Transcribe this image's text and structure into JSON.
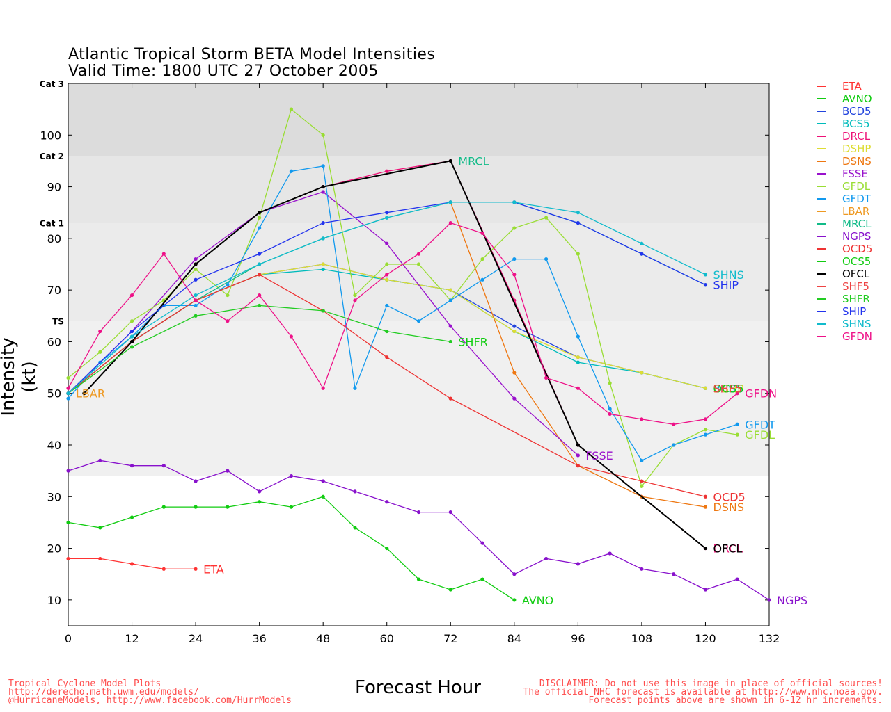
{
  "page": {
    "title_line1": "Atlantic Tropical Storm BETA Model Intensities",
    "title_line2": "Valid Time: 1800 UTC 27 October 2005",
    "footer_left": [
      "Tropical Cyclone Model Plots",
      "http://derecho.math.uwm.edu/models/",
      "@HurricaneModels, http://www.facebook.com/HurrModels"
    ],
    "footer_right": [
      "DISCLAIMER: Do not use this image in place of official sources!",
      "The official NHC forecast is available at http://www.nhc.noaa.gov.",
      "Forecast points above are shown in 6-12 hr increments."
    ]
  },
  "chart_data": {
    "type": "line",
    "title": "Atlantic Tropical Storm BETA Model Intensities",
    "subtitle": "Valid Time: 1800 UTC 27 October 2005",
    "xlabel": "Forecast Hour",
    "ylabel": "Intensity (kt)",
    "xlim": [
      0,
      132
    ],
    "ylim": [
      5,
      110
    ],
    "xticks": [
      0,
      12,
      24,
      36,
      48,
      60,
      72,
      84,
      96,
      108,
      120,
      132
    ],
    "yticks": [
      10,
      20,
      30,
      40,
      50,
      60,
      70,
      80,
      90,
      100
    ],
    "category_bands": [
      {
        "label": "TS",
        "from": 34,
        "to": 64,
        "color": "#f0f0f0"
      },
      {
        "label": "Cat 1",
        "from": 64,
        "to": 83,
        "color": "#ebebeb"
      },
      {
        "label": "Cat 2",
        "from": 83,
        "to": 96,
        "color": "#e6e6e6"
      },
      {
        "label": "Cat 3",
        "from": 96,
        "to": 110,
        "color": "#dcdcdc"
      }
    ],
    "series": [
      {
        "name": "ETA",
        "color": "#ff3333",
        "end_label": "ETA",
        "points": [
          [
            0,
            18
          ],
          [
            6,
            18
          ],
          [
            12,
            17
          ],
          [
            18,
            16
          ],
          [
            24,
            16
          ]
        ]
      },
      {
        "name": "AVNO",
        "color": "#11cc11",
        "end_label": "AVNO",
        "points": [
          [
            0,
            25
          ],
          [
            6,
            24
          ],
          [
            12,
            26
          ],
          [
            18,
            28
          ],
          [
            24,
            28
          ],
          [
            30,
            28
          ],
          [
            36,
            29
          ],
          [
            42,
            28
          ],
          [
            48,
            30
          ],
          [
            54,
            24
          ],
          [
            60,
            20
          ],
          [
            66,
            14
          ],
          [
            72,
            12
          ],
          [
            78,
            14
          ],
          [
            84,
            10
          ]
        ]
      },
      {
        "name": "BCD5",
        "color": "#2244dd",
        "end_label": "",
        "points": [
          [
            0,
            50
          ],
          [
            12,
            60
          ],
          [
            24,
            68
          ],
          [
            36,
            73
          ],
          [
            48,
            75
          ],
          [
            60,
            72
          ],
          [
            72,
            70
          ],
          [
            84,
            63
          ],
          [
            96,
            57
          ],
          [
            108,
            54
          ],
          [
            120,
            51
          ]
        ]
      },
      {
        "name": "BCS5",
        "color": "#00bbbb",
        "end_label": "",
        "points": [
          [
            0,
            50
          ],
          [
            12,
            60
          ],
          [
            24,
            68
          ],
          [
            36,
            73
          ],
          [
            48,
            74
          ],
          [
            60,
            72
          ],
          [
            72,
            70
          ],
          [
            84,
            62
          ],
          [
            96,
            56
          ],
          [
            108,
            54
          ],
          [
            120,
            51
          ]
        ]
      },
      {
        "name": "DRCL",
        "color": "#ee1177",
        "end_label": "DRCL",
        "points": [
          [
            0,
            50
          ],
          [
            12,
            60
          ],
          [
            24,
            75
          ],
          [
            36,
            85
          ],
          [
            48,
            90
          ],
          [
            60,
            93
          ],
          [
            72,
            95
          ],
          [
            84,
            68
          ],
          [
            96,
            40
          ],
          [
            108,
            30
          ],
          [
            120,
            20
          ]
        ]
      },
      {
        "name": "DSHP",
        "color": "#dddd33",
        "end_label": "",
        "points": [
          [
            0,
            50
          ],
          [
            12,
            60
          ],
          [
            24,
            68
          ],
          [
            36,
            73
          ],
          [
            48,
            75
          ],
          [
            60,
            72
          ],
          [
            72,
            70
          ],
          [
            84,
            62
          ],
          [
            96,
            57
          ],
          [
            108,
            54
          ],
          [
            120,
            51
          ]
        ]
      },
      {
        "name": "DSNS",
        "color": "#ee7711",
        "end_label": "DSNS",
        "points": [
          [
            72,
            87
          ],
          [
            84,
            54
          ],
          [
            96,
            36
          ],
          [
            108,
            30
          ],
          [
            120,
            28
          ]
        ]
      },
      {
        "name": "FSSE",
        "color": "#9911cc",
        "end_label": "FSSE",
        "points": [
          [
            0,
            50
          ],
          [
            12,
            62
          ],
          [
            24,
            76
          ],
          [
            36,
            85
          ],
          [
            48,
            89
          ],
          [
            60,
            79
          ],
          [
            72,
            63
          ],
          [
            84,
            49
          ],
          [
            96,
            38
          ]
        ]
      },
      {
        "name": "GFDL",
        "color": "#99dd33",
        "end_label": "GFDL",
        "points": [
          [
            0,
            53
          ],
          [
            6,
            58
          ],
          [
            12,
            64
          ],
          [
            18,
            68
          ],
          [
            24,
            74
          ],
          [
            30,
            69
          ],
          [
            36,
            84
          ],
          [
            42,
            105
          ],
          [
            48,
            100
          ],
          [
            54,
            69
          ],
          [
            60,
            75
          ],
          [
            66,
            75
          ],
          [
            72,
            68
          ],
          [
            78,
            76
          ],
          [
            84,
            82
          ],
          [
            90,
            84
          ],
          [
            96,
            77
          ],
          [
            102,
            52
          ],
          [
            108,
            32
          ],
          [
            114,
            40
          ],
          [
            120,
            43
          ],
          [
            126,
            42
          ]
        ]
      },
      {
        "name": "GFDT",
        "color": "#1199ee",
        "end_label": "GFDT",
        "points": [
          [
            0,
            49
          ],
          [
            6,
            56
          ],
          [
            12,
            61
          ],
          [
            18,
            67
          ],
          [
            24,
            67
          ],
          [
            30,
            71
          ],
          [
            36,
            82
          ],
          [
            42,
            93
          ],
          [
            48,
            94
          ],
          [
            54,
            51
          ],
          [
            60,
            67
          ],
          [
            66,
            64
          ],
          [
            72,
            68
          ],
          [
            78,
            72
          ],
          [
            84,
            76
          ],
          [
            90,
            76
          ],
          [
            96,
            61
          ],
          [
            102,
            47
          ],
          [
            108,
            37
          ],
          [
            114,
            40
          ],
          [
            120,
            42
          ],
          [
            126,
            44
          ]
        ]
      },
      {
        "name": "LBAR",
        "color": "#ee9922",
        "end_label": "LBAR",
        "points": [
          [
            0,
            50
          ]
        ]
      },
      {
        "name": "MRCL",
        "color": "#11bb88",
        "end_label": "MRCL",
        "points": [
          [
            0,
            50
          ],
          [
            12,
            60
          ],
          [
            24,
            68
          ],
          [
            36,
            75
          ],
          [
            48,
            80
          ],
          [
            60,
            84
          ],
          [
            72,
            87
          ],
          [
            84,
            87
          ],
          [
            96,
            83
          ],
          [
            108,
            77
          ],
          [
            120,
            71
          ]
        ]
      },
      {
        "name": "NGPS",
        "color": "#8811cc",
        "end_label": "NGPS",
        "points": [
          [
            0,
            35
          ],
          [
            6,
            37
          ],
          [
            12,
            36
          ],
          [
            18,
            36
          ],
          [
            24,
            33
          ],
          [
            30,
            35
          ],
          [
            36,
            31
          ],
          [
            42,
            34
          ],
          [
            48,
            33
          ],
          [
            54,
            31
          ],
          [
            60,
            29
          ],
          [
            66,
            27
          ],
          [
            72,
            27
          ],
          [
            78,
            21
          ],
          [
            84,
            15
          ],
          [
            90,
            18
          ],
          [
            96,
            17
          ],
          [
            102,
            19
          ],
          [
            108,
            16
          ],
          [
            114,
            15
          ],
          [
            120,
            12
          ],
          [
            126,
            14
          ],
          [
            132,
            10
          ]
        ]
      },
      {
        "name": "OCD5",
        "color": "#ee3333",
        "end_label": "OCD5",
        "points": [
          [
            0,
            50
          ],
          [
            12,
            60
          ],
          [
            24,
            68
          ],
          [
            36,
            73
          ],
          [
            48,
            66
          ],
          [
            60,
            57
          ],
          [
            72,
            49
          ],
          [
            96,
            36
          ],
          [
            108,
            33
          ],
          [
            120,
            30
          ]
        ]
      },
      {
        "name": "OCS5",
        "color": "#11cc11",
        "end_label": "",
        "points": []
      },
      {
        "name": "OFCL",
        "color": "#000000",
        "end_label": "OFCL",
        "points": [
          [
            3,
            50
          ],
          [
            12,
            60
          ],
          [
            24,
            75
          ],
          [
            36,
            85
          ],
          [
            48,
            90
          ],
          [
            72,
            95
          ],
          [
            96,
            40
          ],
          [
            120,
            20
          ]
        ]
      },
      {
        "name": "SHF5",
        "color": "#ee4444",
        "end_label": "",
        "points": []
      },
      {
        "name": "SHFR",
        "color": "#22cc22",
        "end_label": "SHFR",
        "points": [
          [
            0,
            50
          ],
          [
            12,
            59
          ],
          [
            24,
            65
          ],
          [
            36,
            67
          ],
          [
            48,
            66
          ],
          [
            60,
            62
          ],
          [
            72,
            60
          ]
        ]
      },
      {
        "name": "SHIP",
        "color": "#2233ee",
        "end_label": "SHIP",
        "points": [
          [
            0,
            50
          ],
          [
            12,
            62
          ],
          [
            24,
            72
          ],
          [
            36,
            77
          ],
          [
            48,
            83
          ],
          [
            60,
            85
          ],
          [
            72,
            87
          ],
          [
            84,
            87
          ],
          [
            96,
            83
          ],
          [
            108,
            77
          ],
          [
            120,
            71
          ]
        ]
      },
      {
        "name": "SHNS",
        "color": "#11bbcc",
        "end_label": "SHNS",
        "points": [
          [
            0,
            50
          ],
          [
            12,
            61
          ],
          [
            24,
            69
          ],
          [
            36,
            75
          ],
          [
            48,
            80
          ],
          [
            60,
            84
          ],
          [
            72,
            87
          ],
          [
            84,
            87
          ],
          [
            96,
            85
          ],
          [
            108,
            79
          ],
          [
            120,
            73
          ]
        ]
      },
      {
        "name": "GFDN",
        "color": "#ee1188",
        "end_label": "GFDN",
        "points": [
          [
            0,
            51
          ],
          [
            6,
            62
          ],
          [
            12,
            69
          ],
          [
            18,
            77
          ],
          [
            24,
            68
          ],
          [
            30,
            64
          ],
          [
            36,
            69
          ],
          [
            42,
            61
          ],
          [
            48,
            51
          ],
          [
            54,
            68
          ],
          [
            60,
            73
          ],
          [
            66,
            77
          ],
          [
            72,
            83
          ],
          [
            78,
            81
          ],
          [
            84,
            73
          ],
          [
            90,
            53
          ],
          [
            96,
            51
          ],
          [
            102,
            46
          ],
          [
            108,
            45
          ],
          [
            114,
            44
          ],
          [
            120,
            45
          ],
          [
            126,
            50
          ]
        ]
      }
    ],
    "end_labels": [
      {
        "text": "ETA",
        "x": 24,
        "y": 16,
        "color": "#ff3333"
      },
      {
        "text": "AVNO",
        "x": 84,
        "y": 10,
        "color": "#11cc11"
      },
      {
        "text": "MRCL",
        "x": 72,
        "y": 95,
        "color": "#11bb88"
      },
      {
        "text": "SHFR",
        "x": 72,
        "y": 60,
        "color": "#11cc11"
      },
      {
        "text": "LBAR",
        "x": 0,
        "y": 50,
        "color": "#ee9922"
      },
      {
        "text": "SHNS",
        "x": 120,
        "y": 73,
        "color": "#11bbcc"
      },
      {
        "text": "SHIP",
        "x": 120,
        "y": 71,
        "color": "#2233ee"
      },
      {
        "text": "BCD5",
        "x": 120,
        "y": 51,
        "color": "#2244dd"
      },
      {
        "text": "BCS5",
        "x": 120,
        "y": 51,
        "color": "#00bbbb"
      },
      {
        "text": "DSHP",
        "x": 120,
        "y": 51,
        "color": "#dddd33"
      },
      {
        "text": "OCS5",
        "x": 120,
        "y": 51,
        "color": "#11cc11"
      },
      {
        "text": "SHF5",
        "x": 120,
        "y": 51,
        "color": "#ee4444"
      },
      {
        "text": "GFDN",
        "x": 126,
        "y": 50,
        "color": "#ee1188"
      },
      {
        "text": "GFDT",
        "x": 126,
        "y": 44,
        "color": "#1199ee"
      },
      {
        "text": "GFDL",
        "x": 126,
        "y": 42,
        "color": "#99dd33"
      },
      {
        "text": "FSSE",
        "x": 96,
        "y": 38,
        "color": "#9911cc"
      },
      {
        "text": "OCD5",
        "x": 120,
        "y": 30,
        "color": "#ee3333"
      },
      {
        "text": "DSNS",
        "x": 120,
        "y": 28,
        "color": "#ee7711"
      },
      {
        "text": "DRCL",
        "x": 120,
        "y": 20,
        "color": "#ee1177"
      },
      {
        "text": "OFCL",
        "x": 120,
        "y": 20,
        "color": "#000000"
      },
      {
        "text": "NGPS",
        "x": 132,
        "y": 10,
        "color": "#8811cc"
      }
    ]
  }
}
